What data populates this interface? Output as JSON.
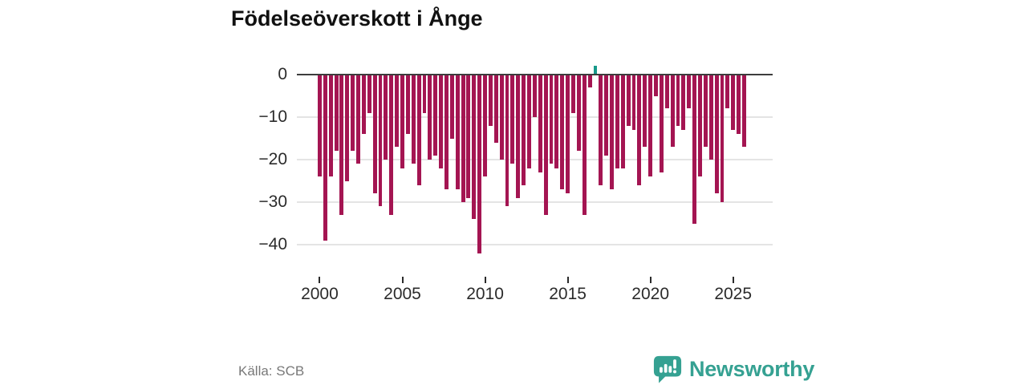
{
  "chart_data": {
    "type": "bar",
    "title": "Födelseöverskott i Ånge",
    "xlabel": "",
    "ylabel": "",
    "start_year": 2000,
    "bars_per_year": 3,
    "x_tick_years": [
      2000,
      2005,
      2010,
      2015,
      2020,
      2025
    ],
    "y_ticks": [
      0,
      -10,
      -20,
      -30,
      -40
    ],
    "ylim": [
      -44,
      4
    ],
    "grid": "horizontal",
    "legend": "none",
    "colors": {
      "negative_bar": "#a41552",
      "positive_bar": "#17998a",
      "zero_line": "#3d3d3d",
      "gridline": "#e4e4e4",
      "axis_text": "#2b2b2b"
    },
    "values": [
      -24,
      -39,
      -24,
      -18,
      -33,
      -25,
      -18,
      -21,
      -14,
      -9,
      -28,
      -31,
      -20,
      -33,
      -17,
      -22,
      -14,
      -21,
      -26,
      -9,
      -20,
      -19,
      -22,
      -27,
      -15,
      -27,
      -30,
      -29,
      -34,
      -42,
      -24,
      -12,
      -16,
      -20,
      -31,
      -21,
      -29,
      -26,
      -22,
      -10,
      -23,
      -33,
      -21,
      -22,
      -27,
      -28,
      -9,
      -18,
      -33,
      -3,
      2,
      -26,
      -19,
      -27,
      -22,
      -22,
      -12,
      -13,
      -26,
      -17,
      -24,
      -5,
      -23,
      -8,
      -17,
      -12,
      -13,
      -8,
      -35,
      -24,
      -17,
      -20,
      -28,
      -30,
      -8,
      -13,
      -14,
      -17
    ]
  },
  "footer": {
    "source": "Källa: SCB",
    "brand": "Newsworthy",
    "brand_color": "#35a192"
  }
}
